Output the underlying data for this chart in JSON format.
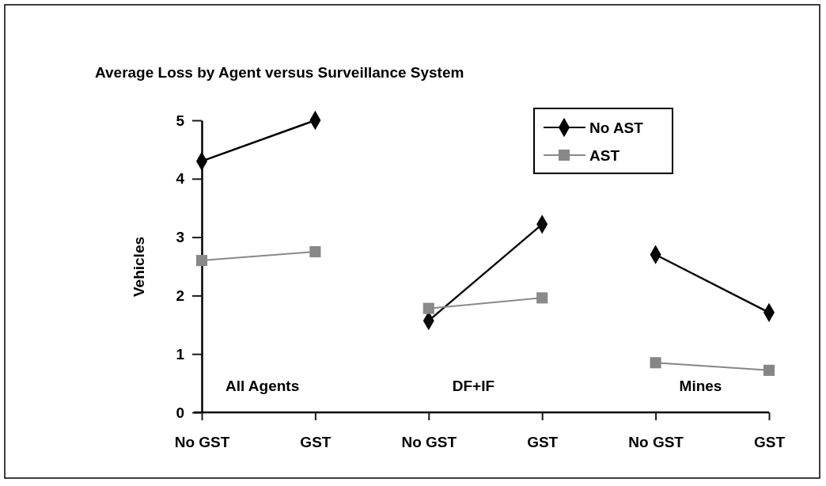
{
  "chart_data": {
    "type": "line",
    "title": "Average Loss by Agent versus Surveillance System",
    "ylabel": "Vehicles",
    "categories": [
      "No GST",
      "GST",
      "No GST",
      "GST",
      "No GST",
      "GST"
    ],
    "ylim": [
      0,
      5
    ],
    "yticks": [
      0,
      1,
      2,
      3,
      4,
      5
    ],
    "grid": false,
    "legend": "top right",
    "annotations": [
      "All Agents",
      "DF+IF",
      "Mines"
    ],
    "series": [
      {
        "name": "No AST",
        "color": "#000000",
        "marker": "diamond",
        "values": [
          4.3,
          5.0,
          null,
          null,
          null,
          null
        ]
      },
      {
        "name": "AST",
        "color": "#888888",
        "marker": "square",
        "values": [
          2.6,
          2.75,
          null,
          null,
          null,
          null
        ]
      },
      {
        "color": "#0c0c0c",
        "marker": "diamond",
        "values": [
          null,
          null,
          1.57,
          3.22,
          null,
          null
        ]
      },
      {
        "color": "#8a8a8a",
        "marker": "square",
        "values": [
          null,
          null,
          1.78,
          1.96,
          null,
          null
        ]
      },
      {
        "color": "#060606",
        "marker": "diamond",
        "values": [
          null,
          null,
          null,
          null,
          2.7,
          1.71
        ]
      },
      {
        "color": "#868686",
        "marker": "square",
        "values": [
          null,
          null,
          null,
          null,
          0.85,
          0.72
        ]
      }
    ]
  }
}
